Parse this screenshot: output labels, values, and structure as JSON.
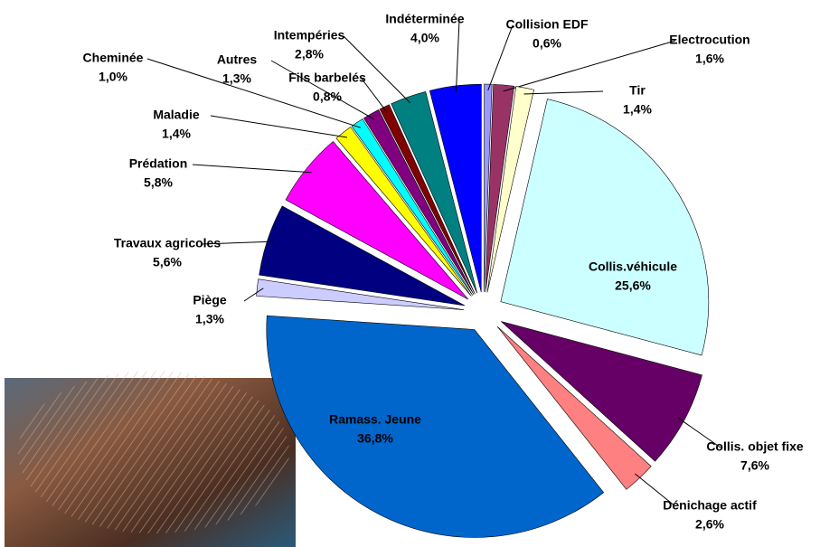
{
  "chart_data": {
    "type": "pie",
    "categories": [
      "Collision EDF",
      "Electrocution",
      "Tir",
      "Collis.véhicule",
      "Collis. objet fixe",
      "Dénichage actif",
      "Ramass. Jeune",
      "Piège",
      "Travaux agricoles",
      "Prédation",
      "Maladie",
      "Cheminée",
      "Autres",
      "Fils barbelés",
      "Intempéries",
      "Indéterminée"
    ],
    "values": [
      0.6,
      1.6,
      1.4,
      25.6,
      7.6,
      2.6,
      36.8,
      1.3,
      5.6,
      5.8,
      1.4,
      1.0,
      1.3,
      0.8,
      2.8,
      4.0
    ],
    "value_labels": [
      "0,6%",
      "1,6%",
      "1,4%",
      "25,6%",
      "7,6%",
      "2,6%",
      "36,8%",
      "1,3%",
      "5,6%",
      "5,8%",
      "1,4%",
      "1,0%",
      "1,3%",
      "0,8%",
      "2,8%",
      "4,0%"
    ],
    "colors": [
      "#9999ff",
      "#993366",
      "#ffffcc",
      "#ccffff",
      "#660066",
      "#ff8080",
      "#0066cc",
      "#ccccff",
      "#000080",
      "#ff00ff",
      "#ffff00",
      "#00ffff",
      "#800080",
      "#800000",
      "#008080",
      "#0000ff"
    ]
  }
}
